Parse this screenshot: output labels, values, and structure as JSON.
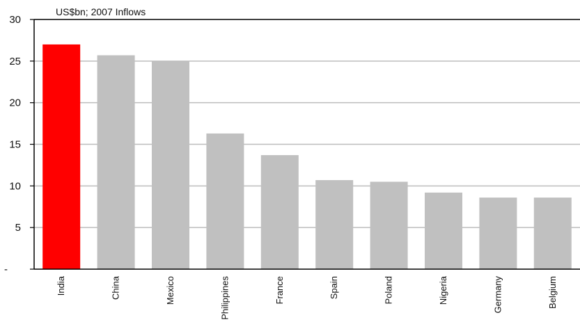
{
  "chart_data": {
    "type": "bar",
    "unit_label": "US$bn; 2007 Inflows",
    "categories": [
      "India",
      "China",
      "Mexico",
      "Philippines",
      "France",
      "Spain",
      "Poland",
      "Nigeria",
      "Germany",
      "Belgium"
    ],
    "values": [
      27.0,
      25.7,
      25.0,
      16.3,
      13.7,
      10.7,
      10.5,
      9.2,
      8.6,
      8.6
    ],
    "highlight_category": "India",
    "highlight_color": "#ff0000",
    "bar_color": "#c0c0c0",
    "ylim": [
      0,
      30
    ],
    "yticks": [
      0,
      5,
      10,
      15,
      20,
      25,
      30
    ],
    "ytick_labels": [
      "-",
      "5",
      "10",
      "15",
      "20",
      "25",
      "30"
    ],
    "grid": true,
    "legend": "none"
  }
}
